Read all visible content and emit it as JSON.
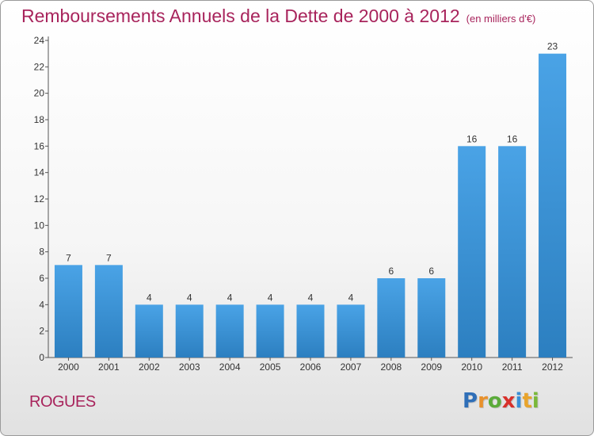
{
  "title": "Remboursements Annuels de la Dette de 2000 à 2012",
  "subtitle": "(en milliers d'€)",
  "town": "ROGUES",
  "logo": {
    "letters": [
      "P",
      "r",
      "o",
      "x",
      "i",
      "t",
      "i"
    ],
    "colors": [
      "#2f6fb8",
      "#e8912c",
      "#5bab3a",
      "#d8312b",
      "#3a8fd6",
      "#e8a42c",
      "#7ab83a"
    ]
  },
  "colors": {
    "bar": "#4aa3e6",
    "bar_dark": "#2c7fc0",
    "title": "#a8245c"
  },
  "chart_data": {
    "type": "bar",
    "categories": [
      "2000",
      "2001",
      "2002",
      "2003",
      "2004",
      "2005",
      "2006",
      "2007",
      "2008",
      "2009",
      "2010",
      "2011",
      "2012"
    ],
    "values": [
      7,
      7,
      4,
      4,
      4,
      4,
      4,
      4,
      6,
      6,
      16,
      16,
      23
    ],
    "title": "Remboursements Annuels de la Dette de 2000 à 2012",
    "ylim": [
      0,
      24
    ],
    "yticks": [
      0,
      2,
      4,
      6,
      8,
      10,
      12,
      14,
      16,
      18,
      20,
      22,
      24
    ],
    "grid": false,
    "legend": "none"
  }
}
